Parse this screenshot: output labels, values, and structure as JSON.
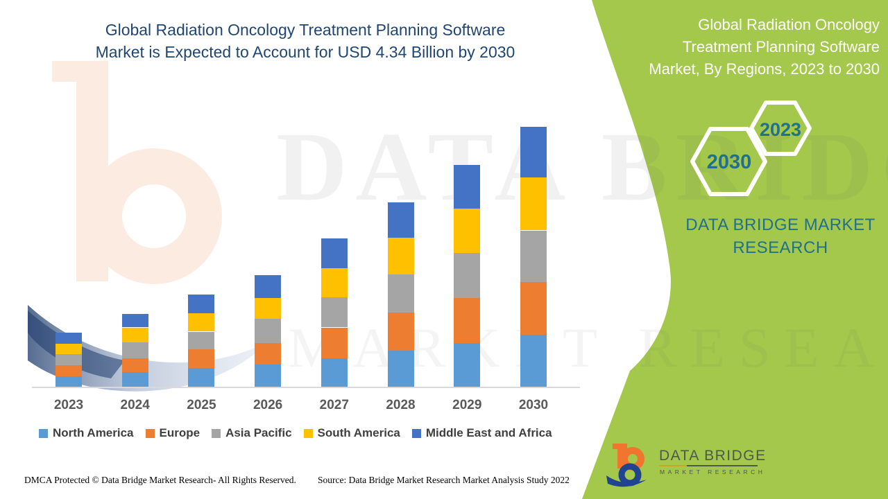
{
  "header": {
    "title_lines": [
      "Global Radiation Oncology Treatment Planning Software",
      "Market is Expected to Account for USD 4.34 Billion by 2030"
    ]
  },
  "right_panel": {
    "title_lines": [
      "Global Radiation Oncology",
      "Treatment Planning Software",
      "Market, By Regions, 2023 to 2030"
    ],
    "hexagons": [
      {
        "label": "2023"
      },
      {
        "label": "2030"
      }
    ],
    "brand_lines": [
      "DATA BRIDGE MARKET",
      "RESEARCH"
    ],
    "colors": {
      "panel_green": "#a3c84b",
      "teal_text": "#21708e",
      "hexagon_stroke": "#ffffff"
    }
  },
  "chart_data": {
    "type": "bar",
    "stacked": true,
    "unit": "USD Billion",
    "title": "Global Radiation Oncology Treatment Planning Software Market, By Regions, 2023 to 2030",
    "xlabel": "",
    "ylabel": "",
    "grid": false,
    "axis_labels_shown": false,
    "legend_position": "bottom",
    "categories": [
      "2023",
      "2024",
      "2025",
      "2026",
      "2027",
      "2028",
      "2029",
      "2030"
    ],
    "series": [
      {
        "name": "North America",
        "color": "#5B9BD5",
        "values": [
          0.17,
          0.24,
          0.31,
          0.37,
          0.47,
          0.6,
          0.73,
          0.87
        ]
      },
      {
        "name": "Europe",
        "color": "#ED7D31",
        "values": [
          0.19,
          0.24,
          0.31,
          0.36,
          0.52,
          0.64,
          0.75,
          0.88
        ]
      },
      {
        "name": "Asia Pacific",
        "color": "#A5A5A5",
        "values": [
          0.18,
          0.26,
          0.3,
          0.4,
          0.5,
          0.63,
          0.75,
          0.86
        ]
      },
      {
        "name": "South America",
        "color": "#FFC000",
        "values": [
          0.18,
          0.25,
          0.31,
          0.35,
          0.49,
          0.62,
          0.74,
          0.89
        ]
      },
      {
        "name": "Middle East and Africa",
        "color": "#4472C4",
        "values": [
          0.18,
          0.23,
          0.31,
          0.38,
          0.5,
          0.59,
          0.73,
          0.84
        ]
      }
    ],
    "totals": [
      0.9,
      1.22,
      1.54,
      1.86,
      2.48,
      3.08,
      3.7,
      4.34
    ]
  },
  "watermarks": {
    "big_text": "DATA BRIDGE",
    "sub_text": "MARKET RESEARCH"
  },
  "footer": {
    "dmca": "DMCA Protected © Data Bridge Market Research- All Rights Reserved.",
    "source": "Source: Data Bridge Market Research Market Analysis Study 2022",
    "logo": {
      "brand": "DATA BRIDGE",
      "tagline": "MARKET RESEARCH"
    }
  }
}
